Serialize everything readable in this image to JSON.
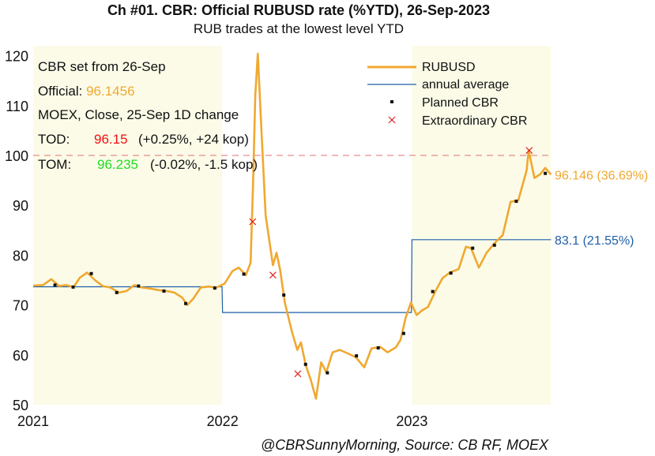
{
  "title": "Ch #01. CBR: Official RUBUSD rate (%YTD), 26-Sep-2023",
  "subtitle": "RUB trades at the lowest level YTD",
  "footer": "@CBRSunnyMorning, Source: CB RF, MOEX",
  "info": {
    "line1": "CBR set from 26-Sep",
    "official_label": "Official: ",
    "official_value": "96.1456",
    "line3": "MOEX, Close, 25-Sep 1D change",
    "tod_label": "TOD:",
    "tod_value": "96.15",
    "tod_change": "(+0.25%, +24 kop)",
    "tom_label": "TOM:",
    "tom_value": "96.235",
    "tom_change": "(-0.02%, -1.5 kop)"
  },
  "colors": {
    "rubusd": "#f0a830",
    "average": "#1f5fa8",
    "shade": "#fbfbe8",
    "reference": "#e07070",
    "tod": "#ee1111",
    "tom": "#22dd22",
    "official": "#f0a830",
    "extraordinary": "#dd2222",
    "planned": "#111111"
  },
  "chart_data": {
    "type": "line",
    "title": "Ch #01. CBR: Official RUBUSD rate (%YTD), 26-Sep-2023",
    "subtitle": "RUB trades at the lowest level YTD",
    "xlabel": "",
    "ylabel": "",
    "x_ticks": [
      "2021",
      "2022",
      "2023"
    ],
    "y_ticks": [
      50,
      60,
      70,
      80,
      90,
      100,
      110,
      120
    ],
    "xlim": [
      "2021-01-01",
      "2023-09-30"
    ],
    "ylim": [
      50,
      122
    ],
    "grid": false,
    "legend_position": "top-right",
    "shaded_periods": [
      {
        "from": "2021-01-01",
        "to": "2021-12-31"
      },
      {
        "from": "2023-01-01",
        "to": "2023-09-26"
      }
    ],
    "reference_line": {
      "y": 100,
      "style": "dashed"
    },
    "series": [
      {
        "name": "RUBUSD",
        "style": "line",
        "points": [
          [
            "2021-01-01",
            73.9
          ],
          [
            "2021-01-20",
            74.0
          ],
          [
            "2021-02-05",
            75.2
          ],
          [
            "2021-02-20",
            73.8
          ],
          [
            "2021-03-05",
            74.0
          ],
          [
            "2021-03-20",
            73.6
          ],
          [
            "2021-04-01",
            75.5
          ],
          [
            "2021-04-15",
            76.5
          ],
          [
            "2021-04-30",
            75.0
          ],
          [
            "2021-05-15",
            73.8
          ],
          [
            "2021-05-30",
            73.5
          ],
          [
            "2021-06-15",
            72.5
          ],
          [
            "2021-06-30",
            72.8
          ],
          [
            "2021-07-15",
            74.0
          ],
          [
            "2021-07-30",
            73.5
          ],
          [
            "2021-08-15",
            73.3
          ],
          [
            "2021-08-30",
            73.0
          ],
          [
            "2021-09-15",
            72.8
          ],
          [
            "2021-09-30",
            72.5
          ],
          [
            "2021-10-15",
            71.5
          ],
          [
            "2021-10-25",
            70.0
          ],
          [
            "2021-11-05",
            71.2
          ],
          [
            "2021-11-20",
            73.5
          ],
          [
            "2021-12-05",
            73.7
          ],
          [
            "2021-12-20",
            73.5
          ],
          [
            "2022-01-05",
            74.3
          ],
          [
            "2022-01-20",
            76.8
          ],
          [
            "2022-02-01",
            77.5
          ],
          [
            "2022-02-15",
            76.0
          ],
          [
            "2022-02-24",
            78.5
          ],
          [
            "2022-03-01",
            95.0
          ],
          [
            "2022-03-05",
            112.0
          ],
          [
            "2022-03-10",
            120.4
          ],
          [
            "2022-03-17",
            105.0
          ],
          [
            "2022-03-25",
            88.0
          ],
          [
            "2022-04-01",
            83.0
          ],
          [
            "2022-04-08",
            78.0
          ],
          [
            "2022-04-15",
            80.5
          ],
          [
            "2022-04-22",
            77.0
          ],
          [
            "2022-05-01",
            70.5
          ],
          [
            "2022-05-15",
            64.5
          ],
          [
            "2022-05-25",
            61.0
          ],
          [
            "2022-06-01",
            62.5
          ],
          [
            "2022-06-10",
            58.0
          ],
          [
            "2022-06-20",
            55.0
          ],
          [
            "2022-06-30",
            51.2
          ],
          [
            "2022-07-10",
            58.5
          ],
          [
            "2022-07-20",
            56.5
          ],
          [
            "2022-08-01",
            60.5
          ],
          [
            "2022-08-15",
            61.0
          ],
          [
            "2022-09-01",
            60.2
          ],
          [
            "2022-09-15",
            59.5
          ],
          [
            "2022-10-01",
            57.5
          ],
          [
            "2022-10-15",
            61.3
          ],
          [
            "2022-11-01",
            61.6
          ],
          [
            "2022-11-15",
            60.5
          ],
          [
            "2022-12-01",
            61.5
          ],
          [
            "2022-12-10",
            63.0
          ],
          [
            "2022-12-20",
            67.5
          ],
          [
            "2022-12-30",
            70.5
          ],
          [
            "2023-01-10",
            68.0
          ],
          [
            "2023-01-20",
            68.9
          ],
          [
            "2023-02-01",
            69.6
          ],
          [
            "2023-02-15",
            72.7
          ],
          [
            "2023-03-01",
            75.4
          ],
          [
            "2023-03-15",
            76.5
          ],
          [
            "2023-04-01",
            77.2
          ],
          [
            "2023-04-15",
            81.7
          ],
          [
            "2023-04-25",
            81.4
          ],
          [
            "2023-05-10",
            77.5
          ],
          [
            "2023-05-25",
            80.5
          ],
          [
            "2023-06-10",
            82.5
          ],
          [
            "2023-06-25",
            84.0
          ],
          [
            "2023-07-10",
            90.7
          ],
          [
            "2023-07-25",
            91.0
          ],
          [
            "2023-08-10",
            97.0
          ],
          [
            "2023-08-14",
            101.0
          ],
          [
            "2023-08-25",
            95.5
          ],
          [
            "2023-09-05",
            96.2
          ],
          [
            "2023-09-15",
            97.5
          ],
          [
            "2023-09-26",
            96.15
          ]
        ]
      },
      {
        "name": "annual average",
        "style": "step",
        "points": [
          [
            "2021-01-01",
            73.65
          ],
          [
            "2021-12-31",
            73.65
          ],
          [
            "2022-01-01",
            68.5
          ],
          [
            "2022-12-31",
            68.5
          ],
          [
            "2023-01-01",
            83.1
          ],
          [
            "2023-09-26",
            83.1
          ]
        ]
      },
      {
        "name": "Planned CBR",
        "style": "markers",
        "points": [
          [
            "2021-02-12",
            74.0
          ],
          [
            "2021-03-19",
            73.6
          ],
          [
            "2021-04-23",
            76.3
          ],
          [
            "2021-06-11",
            72.5
          ],
          [
            "2021-07-23",
            73.8
          ],
          [
            "2021-09-10",
            72.8
          ],
          [
            "2021-10-22",
            70.3
          ],
          [
            "2021-12-17",
            73.4
          ],
          [
            "2022-02-11",
            76.2
          ],
          [
            "2022-04-29",
            72.0
          ],
          [
            "2022-06-10",
            58.1
          ],
          [
            "2022-07-22",
            56.4
          ],
          [
            "2022-09-16",
            59.8
          ],
          [
            "2022-10-28",
            61.4
          ],
          [
            "2022-12-16",
            64.3
          ],
          [
            "2023-02-10",
            72.7
          ],
          [
            "2023-03-17",
            76.4
          ],
          [
            "2023-04-28",
            81.4
          ],
          [
            "2023-06-09",
            82.0
          ],
          [
            "2023-07-21",
            90.8
          ],
          [
            "2023-09-15",
            96.4
          ]
        ]
      },
      {
        "name": "Extraordinary CBR",
        "style": "markers",
        "points": [
          [
            "2022-02-28",
            86.7
          ],
          [
            "2022-04-08",
            76.0
          ],
          [
            "2022-05-26",
            56.2
          ],
          [
            "2023-08-15",
            101.0
          ]
        ]
      }
    ],
    "annotations": [
      {
        "text": "96.146 (36.69%)",
        "series": "RUBUSD",
        "x": "2023-09-26",
        "y": 96.146
      },
      {
        "text": "83.1 (21.55%)",
        "series": "annual average",
        "x": "2023-09-26",
        "y": 83.1
      }
    ]
  }
}
